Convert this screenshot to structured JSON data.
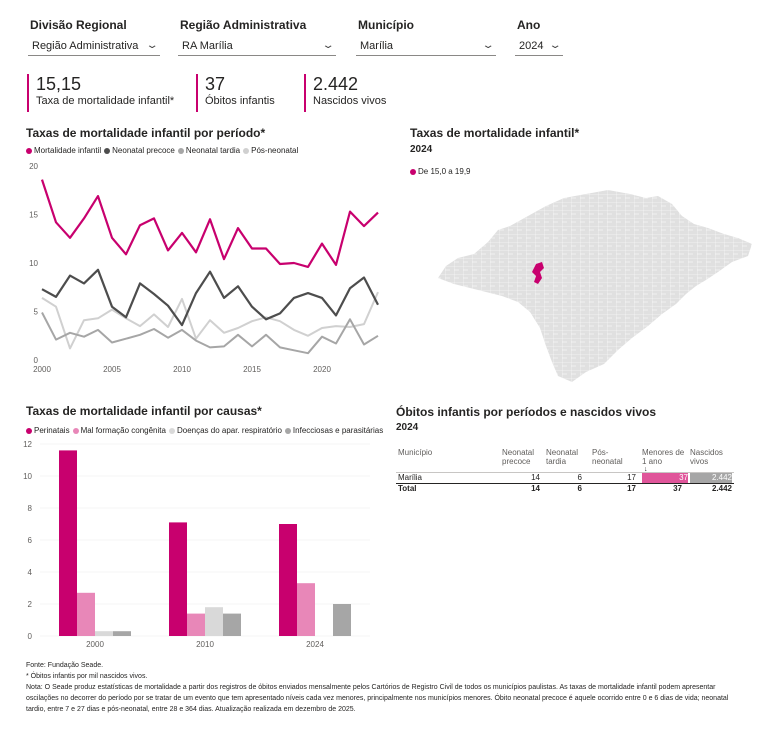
{
  "filters": {
    "divisao": {
      "label": "Divisão Regional",
      "value": "Região Administrativa"
    },
    "regiao": {
      "label": "Região Administrativa",
      "value": "RA Marília"
    },
    "municipio": {
      "label": "Município",
      "value": "Marília"
    },
    "ano": {
      "label": "Ano",
      "value": "2024"
    }
  },
  "kpis": [
    {
      "value": "15,15",
      "label": "Taxa de mortalidade infantil*"
    },
    {
      "value": "37",
      "label": "Óbitos infantis"
    },
    {
      "value": "2.442",
      "label": "Nascidos vivos"
    }
  ],
  "colors": {
    "accent": "#c8006e",
    "pink_light": "#e887b8",
    "dark_gray": "#4d4d4d",
    "mid_gray": "#a6a6a6",
    "light_gray": "#d0d0d0"
  },
  "line_chart": {
    "title": "Taxas de mortalidade infantil por período*",
    "legend": [
      "Mortalidade infantil",
      "Neonatal precoce",
      "Neonatal tardia",
      "Pós-neonatal"
    ]
  },
  "map": {
    "title": "Taxas de mortalidade infantil*",
    "year": "2024",
    "legend": "De 15,0 a 19,9"
  },
  "bar_chart": {
    "title": "Taxas de mortalidade infantil por causas*",
    "legend": [
      "Perinatais",
      "Mal formação congênita",
      "Doenças do apar. respiratório",
      "Infecciosas e parasitárias"
    ]
  },
  "table": {
    "title": "Óbitos infantis por períodos e nascidos vivos",
    "year": "2024",
    "headers": [
      "Município",
      "Neonatal precoce",
      "Neonatal tardia",
      "Pós-neonatal",
      "Menores de 1 ano",
      "Nascidos vivos"
    ],
    "rows": [
      [
        "Marília",
        "14",
        "6",
        "17",
        "37",
        "2.442"
      ]
    ],
    "total": [
      "Total",
      "14",
      "6",
      "17",
      "37",
      "2.442"
    ],
    "bar_fractions": {
      "menores": 1.0,
      "nascidos": 1.0
    }
  },
  "notes": {
    "fonte": "Fonte: Fundação Seade.",
    "asterisk": "* Óbitos infantis por mil nascidos vivos.",
    "nota": "Nota: O Seade produz estatísticas de mortalidade a partir dos registros de óbitos enviados mensalmente pelos Cartórios de Registro Civil de todos os municípios paulistas. As taxas de mortalidade infantil podem apresentar oscilações no decorrer do período por se tratar de um evento que tem apresentado níveis cada vez menores, principalmente nos municípios menores. Óbito neonatal precoce é aquele ocorrido entre 0 e 6 dias de vida; neonatal tardio, entre 7 e 27 dias e pós-neonatal, entre 28 e 364 dias. Atualização realizada em dezembro de 2025."
  },
  "chart_data": [
    {
      "type": "line",
      "title": "Taxas de mortalidade infantil por período*",
      "x": [
        2000,
        2001,
        2002,
        2003,
        2004,
        2005,
        2006,
        2007,
        2008,
        2009,
        2010,
        2011,
        2012,
        2013,
        2014,
        2015,
        2016,
        2017,
        2018,
        2019,
        2020,
        2021,
        2022,
        2023,
        2024
      ],
      "xticks": [
        2000,
        2005,
        2010,
        2015,
        2020
      ],
      "yticks": [
        0,
        5,
        10,
        15,
        20
      ],
      "ylim": [
        0,
        20
      ],
      "series": [
        {
          "name": "Mortalidade infantil",
          "values": [
            18.6,
            14.2,
            12.6,
            14.6,
            16.9,
            12.6,
            10.9,
            13.9,
            14.6,
            11.3,
            13.1,
            11.1,
            14.5,
            10.4,
            13.6,
            11.5,
            11.5,
            9.9,
            10.0,
            9.6,
            12.0,
            9.8,
            15.3,
            13.8,
            15.2
          ]
        },
        {
          "name": "Neonatal precoce",
          "values": [
            7.3,
            6.5,
            8.7,
            7.9,
            9.3,
            5.5,
            4.4,
            7.9,
            6.8,
            5.6,
            3.6,
            6.9,
            9.1,
            6.4,
            7.6,
            5.5,
            4.2,
            4.8,
            6.4,
            6.9,
            6.4,
            4.6,
            7.4,
            8.5,
            5.7
          ]
        },
        {
          "name": "Neonatal tardia",
          "values": [
            4.9,
            2.1,
            2.8,
            2.4,
            3.1,
            1.8,
            2.2,
            2.6,
            3.2,
            2.3,
            3.1,
            2.0,
            1.3,
            1.4,
            2.6,
            1.4,
            2.6,
            1.3,
            1.0,
            0.7,
            2.4,
            1.7,
            4.2,
            1.6,
            2.5
          ]
        },
        {
          "name": "Pós-neonatal",
          "values": [
            6.4,
            5.5,
            1.2,
            4.1,
            4.3,
            5.2,
            4.3,
            3.5,
            4.7,
            3.4,
            6.3,
            2.2,
            4.1,
            2.8,
            3.3,
            4.0,
            4.4,
            4.0,
            3.1,
            2.5,
            3.3,
            3.5,
            3.4,
            3.7,
            7.0
          ]
        }
      ]
    },
    {
      "type": "bar",
      "title": "Taxas de mortalidade infantil por causas*",
      "categories": [
        "2000",
        "2010",
        "2024"
      ],
      "yticks": [
        0,
        2,
        4,
        6,
        8,
        10,
        12
      ],
      "ylim": [
        0,
        12
      ],
      "series": [
        {
          "name": "Perinatais",
          "values": [
            11.6,
            7.1,
            7.0
          ]
        },
        {
          "name": "Mal formação congênita",
          "values": [
            2.7,
            1.4,
            3.3
          ]
        },
        {
          "name": "Doenças do apar. respiratório",
          "values": [
            0.3,
            1.8,
            0
          ]
        },
        {
          "name": "Infecciosas e parasitárias",
          "values": [
            0.3,
            1.4,
            2.0
          ]
        }
      ]
    }
  ]
}
